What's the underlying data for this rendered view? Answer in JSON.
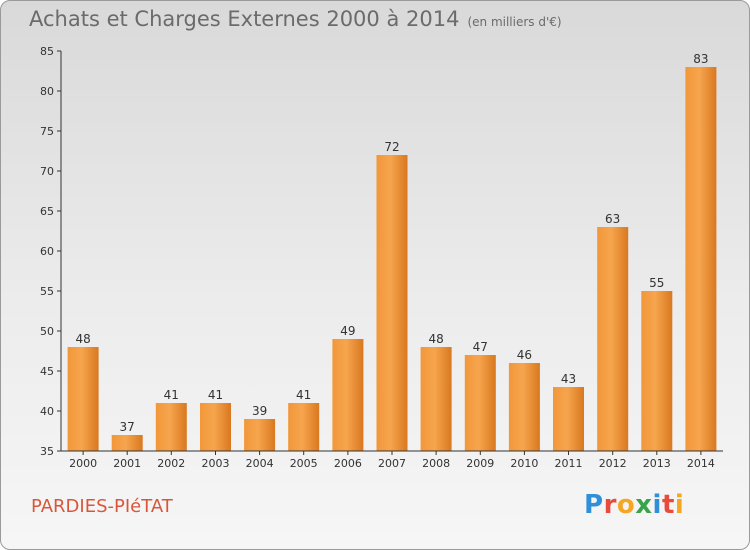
{
  "header": {
    "title": "Achats et Charges Externes 2000 à 2014",
    "subtitle": "(en milliers d'€)"
  },
  "footer": {
    "town": "PARDIES-PIéTAT",
    "logo_letters": [
      {
        "char": "P",
        "color": "#2f8fd8"
      },
      {
        "char": "r",
        "color": "#e84b3c"
      },
      {
        "char": "o",
        "color": "#f5a623"
      },
      {
        "char": "x",
        "color": "#3aa34a"
      },
      {
        "char": "i",
        "color": "#2f8fd8"
      },
      {
        "char": "t",
        "color": "#e84b3c"
      },
      {
        "char": "i",
        "color": "#f5a623"
      }
    ]
  },
  "chart_data": {
    "type": "bar",
    "title": "Achats et Charges Externes 2000 à 2014",
    "subtitle": "(en milliers d'€)",
    "categories": [
      "2000",
      "2001",
      "2002",
      "2003",
      "2004",
      "2005",
      "2006",
      "2007",
      "2008",
      "2009",
      "2010",
      "2011",
      "2012",
      "2013",
      "2014"
    ],
    "values": [
      48,
      37,
      41,
      41,
      39,
      41,
      49,
      72,
      48,
      47,
      46,
      43,
      63,
      55,
      83
    ],
    "ylim": [
      35,
      85
    ],
    "yticks": [
      35,
      40,
      45,
      50,
      55,
      60,
      65,
      70,
      75,
      80,
      85
    ],
    "grid": false,
    "colors": {
      "bar_light": "#f6a54e",
      "bar_dark": "#d9781f",
      "axis": "#333333"
    }
  }
}
